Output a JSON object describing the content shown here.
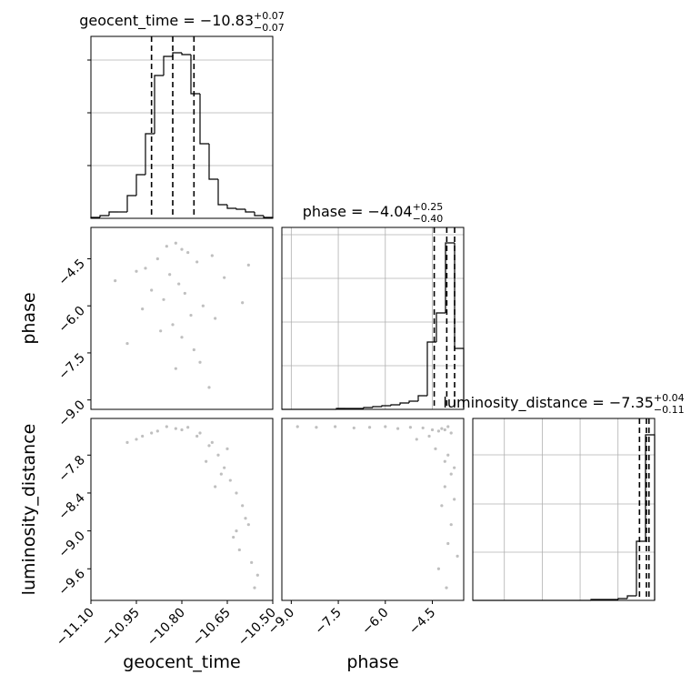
{
  "chart_data": [
    {
      "type": "histogram",
      "title": "geocent_time = −10.83",
      "title_sup": "+0.07",
      "title_sub": "−0.07",
      "bins": [
        -11.1,
        -11.07,
        -11.04,
        -11.01,
        -10.98,
        -10.95,
        -10.92,
        -10.89,
        -10.86,
        -10.83,
        -10.8,
        -10.77,
        -10.74,
        -10.71,
        -10.68,
        -10.65,
        -10.62,
        -10.59,
        -10.56,
        -10.53,
        -10.5
      ],
      "values": [
        1,
        3,
        7,
        7,
        25,
        48,
        93,
        157,
        178,
        182,
        180,
        137,
        82,
        43,
        15,
        11,
        10,
        7,
        3,
        1
      ],
      "quantiles": [
        -10.9,
        -10.83,
        -10.76
      ],
      "xlim": [
        -11.1,
        -10.5
      ],
      "ylim": [
        0,
        200
      ],
      "yticks": [
        58,
        116,
        174
      ],
      "grid": true,
      "color": "#000000"
    },
    {
      "type": "histogram",
      "title": "phase = −4.04",
      "title_sup": "+0.25",
      "title_sub": "−0.40",
      "bins": [
        -9.3,
        -9.01,
        -8.72,
        -8.43,
        -8.14,
        -7.85,
        -7.56,
        -7.27,
        -6.98,
        -6.69,
        -6.4,
        -6.11,
        -5.82,
        -5.53,
        -5.24,
        -4.95,
        -4.66,
        -4.37,
        -4.08,
        -3.79,
        -3.5
      ],
      "values": [
        0,
        0,
        0,
        0,
        0,
        0,
        1,
        1,
        1,
        2,
        3,
        4,
        5,
        7,
        9,
        15,
        74,
        106,
        183,
        67
      ],
      "quantiles": [
        -4.44,
        -4.04,
        -3.79
      ],
      "xlim": [
        -9.3,
        -3.5
      ],
      "ylim": [
        0,
        200
      ],
      "xticks": [
        -9.0,
        -7.5,
        -6.0,
        -4.5
      ],
      "yticks": [
        48,
        96,
        144,
        192
      ],
      "grid": true,
      "color": "#000000"
    },
    {
      "type": "histogram",
      "title": "luminosity_distance = −7.35",
      "title_sup": "+0.04",
      "title_sub": "−0.11",
      "bins": [
        -10.1,
        -9.956,
        -9.812,
        -9.668,
        -9.524,
        -9.38,
        -9.236,
        -9.092,
        -8.948,
        -8.804,
        -8.66,
        -8.516,
        -8.372,
        -8.228,
        -8.084,
        -7.94,
        -7.796,
        -7.652,
        -7.508,
        -7.364,
        -7.22
      ],
      "values": [
        0,
        0,
        0,
        0,
        0,
        0,
        0,
        0,
        0,
        0,
        0,
        0,
        0,
        1,
        1,
        1,
        2,
        5,
        65,
        182
      ],
      "quantiles": [
        -7.46,
        -7.35,
        -7.31
      ],
      "xlim": [
        -10.1,
        -7.22
      ],
      "ylim": [
        0,
        200
      ],
      "xticks": [
        -9.6,
        -9.0,
        -8.4,
        -7.8
      ],
      "yticks": [
        53,
        106,
        160
      ],
      "grid": true,
      "color": "#000000"
    },
    {
      "type": "scatter",
      "ylabel": "phase",
      "color": "#808080",
      "x": [
        -10.85,
        -10.82,
        -10.8,
        -10.78,
        -10.88,
        -10.75,
        -10.92,
        -10.7,
        -10.84,
        -10.81,
        -10.95,
        -10.66,
        -10.79,
        -10.86,
        -10.73,
        -10.9,
        -10.77,
        -10.83,
        -11.02,
        -10.6,
        -10.8,
        -10.76,
        -10.87,
        -10.69,
        -10.98,
        -10.58,
        -10.82,
        -10.74,
        -10.93,
        -10.71
      ],
      "y": [
        -4.1,
        -4.0,
        -4.2,
        -4.3,
        -4.5,
        -4.6,
        -4.8,
        -4.4,
        -5.0,
        -5.3,
        -4.9,
        -5.1,
        -5.6,
        -5.8,
        -6.0,
        -5.5,
        -6.3,
        -6.6,
        -5.2,
        -5.9,
        -7.0,
        -7.4,
        -6.8,
        -6.4,
        -7.2,
        -4.7,
        -8.0,
        -7.8,
        -6.1,
        -8.6
      ],
      "xlim": [
        -11.1,
        -10.5
      ],
      "ylim": [
        -9.3,
        -3.5
      ],
      "yticks": [
        {
          "value": -4.5,
          "label": "−4.5"
        },
        {
          "value": -6.0,
          "label": "−6.0"
        },
        {
          "value": -7.5,
          "label": "−7.5"
        },
        {
          "value": -9.0,
          "label": "−9.0"
        }
      ]
    },
    {
      "type": "scatter",
      "xlabel": "geocent_time",
      "ylabel": "luminosity_distance",
      "color": "#808080",
      "x": [
        -10.85,
        -10.82,
        -10.8,
        -10.78,
        -10.9,
        -10.75,
        -10.95,
        -10.7,
        -10.68,
        -10.72,
        -10.66,
        -10.64,
        -10.62,
        -10.6,
        -10.65,
        -10.58,
        -10.63,
        -10.67,
        -10.98,
        -10.93,
        -10.74,
        -10.61,
        -10.57,
        -10.55,
        -10.69,
        -10.88,
        -10.59,
        -10.62,
        -10.71,
        -10.56
      ],
      "y": [
        -7.35,
        -7.38,
        -7.4,
        -7.36,
        -7.45,
        -7.5,
        -7.55,
        -7.6,
        -7.8,
        -7.9,
        -8.0,
        -8.2,
        -8.4,
        -8.6,
        -7.7,
        -8.9,
        -9.1,
        -8.1,
        -7.6,
        -7.5,
        -7.45,
        -9.3,
        -9.5,
        -9.7,
        -8.3,
        -7.42,
        -8.8,
        -9.0,
        -7.65,
        -9.9
      ],
      "xlim": [
        -11.1,
        -10.5
      ],
      "ylim": [
        -10.1,
        -7.22
      ],
      "xticks": [
        {
          "value": -11.1,
          "label": "−11.10"
        },
        {
          "value": -10.95,
          "label": "−10.95"
        },
        {
          "value": -10.8,
          "label": "−10.80"
        },
        {
          "value": -10.65,
          "label": "−10.65"
        },
        {
          "value": -10.5,
          "label": "−10.50"
        }
      ],
      "yticks": [
        {
          "value": -7.8,
          "label": "−7.8"
        },
        {
          "value": -8.4,
          "label": "−8.4"
        },
        {
          "value": -9.0,
          "label": "−9.0"
        },
        {
          "value": -9.6,
          "label": "−9.6"
        }
      ]
    },
    {
      "type": "scatter",
      "xlabel": "phase",
      "color": "#808080",
      "x": [
        -4.0,
        -4.1,
        -4.2,
        -3.9,
        -4.3,
        -4.5,
        -4.8,
        -5.2,
        -5.6,
        -6.0,
        -6.5,
        -7.0,
        -7.6,
        -8.2,
        -8.8,
        -4.0,
        -3.8,
        -4.1,
        -4.2,
        -3.9,
        -4.4,
        -4.0,
        -3.7,
        -4.1,
        -3.9,
        -4.6,
        -5.0,
        -4.3,
        -3.8,
        -4.05
      ],
      "y": [
        -7.35,
        -7.4,
        -7.38,
        -7.45,
        -7.42,
        -7.4,
        -7.37,
        -7.36,
        -7.38,
        -7.35,
        -7.36,
        -7.37,
        -7.35,
        -7.36,
        -7.35,
        -7.8,
        -8.0,
        -8.3,
        -8.6,
        -8.9,
        -7.7,
        -9.2,
        -9.4,
        -7.9,
        -8.1,
        -7.5,
        -7.55,
        -9.6,
        -8.5,
        -9.9
      ],
      "xlim": [
        -9.3,
        -3.5
      ],
      "ylim": [
        -10.1,
        -7.22
      ],
      "xticks": [
        {
          "value": -9.0,
          "label": "−9.0"
        },
        {
          "value": -7.5,
          "label": "−7.5"
        },
        {
          "value": -6.0,
          "label": "−6.0"
        },
        {
          "value": -4.5,
          "label": "−4.5"
        }
      ]
    }
  ]
}
